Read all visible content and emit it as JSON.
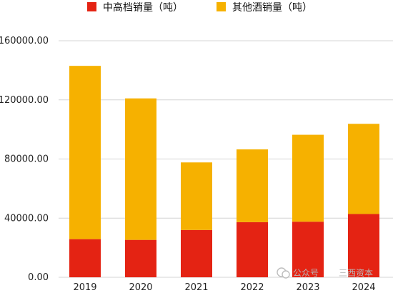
{
  "chart_data": {
    "type": "bar",
    "stacked": true,
    "categories": [
      "2019",
      "2020",
      "2021",
      "2022",
      "2023",
      "2024"
    ],
    "series": [
      {
        "name": "中高档销量（吨）",
        "color": "#e42313",
        "values": [
          25800,
          25300,
          32000,
          37300,
          37600,
          42800
        ]
      },
      {
        "name": "其他酒销量（吨）",
        "color": "#f6b100",
        "values": [
          117200,
          95700,
          45700,
          49200,
          58800,
          61000
        ]
      }
    ],
    "y_ticks": [
      "0.00",
      "40000.00",
      "80000.00",
      "120000.00",
      "160000.00"
    ],
    "ylim": [
      0,
      160000
    ],
    "grid": true,
    "legend_position": "top"
  },
  "watermark": {
    "text_left": "公众号",
    "text_right": "三西资本",
    "icon": "wechat-icon"
  }
}
